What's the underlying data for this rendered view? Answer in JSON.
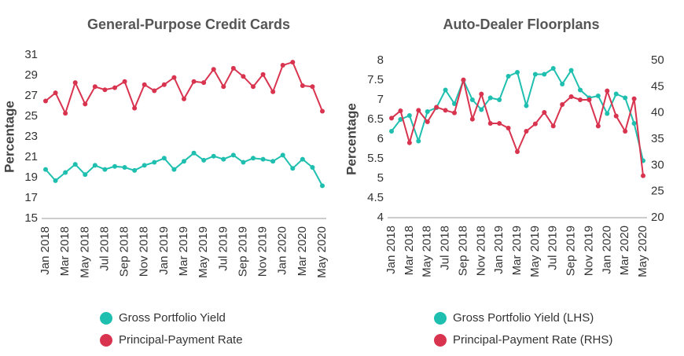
{
  "chart_data": [
    {
      "type": "line",
      "title": "General-Purpose Credit Cards",
      "ylabel": "Percentage",
      "categories": [
        "Jan 2018",
        null,
        "Mar 2018",
        null,
        "May 2018",
        null,
        "Jul 2018",
        null,
        "Sep 2018",
        null,
        "Nov 2018",
        null,
        "Jan 2019",
        null,
        "Mar 2019",
        null,
        "May 2019",
        null,
        "Jul 2019",
        null,
        "Sep 2019",
        null,
        "Nov 2019",
        null,
        "Jan 2020",
        null,
        "Mar 2020",
        null,
        "May 2020"
      ],
      "series": [
        {
          "name": "Gross Portfolio Yield",
          "color": "#1fbfb0",
          "values": [
            19.8,
            18.7,
            19.5,
            20.3,
            19.3,
            20.2,
            19.8,
            20.1,
            20.0,
            19.7,
            20.2,
            20.5,
            20.9,
            19.8,
            20.6,
            21.4,
            20.7,
            21.1,
            20.8,
            21.2,
            20.5,
            20.9,
            20.8,
            20.6,
            21.2,
            19.9,
            20.8,
            20.0,
            18.2
          ]
        },
        {
          "name": "Principal-Payment Rate",
          "color": "#d9344f",
          "values": [
            26.5,
            27.3,
            25.3,
            28.3,
            26.2,
            27.9,
            27.6,
            27.8,
            28.4,
            25.8,
            28.1,
            27.5,
            28.1,
            28.8,
            26.7,
            28.4,
            28.3,
            29.6,
            27.9,
            29.7,
            28.9,
            27.9,
            29.1,
            27.4,
            30.0,
            30.3,
            28.0,
            27.9,
            25.5
          ]
        }
      ],
      "ylim": [
        15,
        31
      ],
      "yticks": [
        15,
        17,
        19,
        21,
        23,
        25,
        27,
        29,
        31
      ],
      "grid": false
    },
    {
      "type": "line",
      "title": "Auto-Dealer Floorplans",
      "ylabel": "Percentage",
      "categories": [
        "Jan 2018",
        null,
        "Mar 2018",
        null,
        "May 2018",
        null,
        "Jul 2018",
        null,
        "Sep 2018",
        null,
        "Nov 2018",
        null,
        "Jan 2019",
        null,
        "Mar 2019",
        null,
        "May 2019",
        null,
        "Jul 2019",
        null,
        "Sep 2019",
        null,
        "Nov 2019",
        null,
        "Jan 2020",
        null,
        "Mar 2020",
        null,
        "May 2020"
      ],
      "series": [
        {
          "name": "Gross Portfolio Yield (LHS)",
          "color": "#1fbfb0",
          "values": [
            6.2,
            6.5,
            6.6,
            5.95,
            6.7,
            6.8,
            7.25,
            6.9,
            7.5,
            7.0,
            6.75,
            7.05,
            7.0,
            7.6,
            7.7,
            6.85,
            7.65,
            7.65,
            7.8,
            7.4,
            7.75,
            7.25,
            7.05,
            7.1,
            6.65,
            7.15,
            7.05,
            6.4,
            5.45
          ]
        },
        {
          "name": "Principal-Payment Rate (RHS)",
          "color": "#d9344f",
          "axis": "y2",
          "values": [
            39.0,
            40.4,
            34.3,
            40.5,
            38.3,
            41.1,
            40.5,
            40.0,
            46.3,
            38.8,
            43.6,
            38.0,
            38.0,
            37.1,
            32.6,
            36.5,
            37.9,
            40.1,
            37.5,
            41.6,
            43.1,
            42.5,
            42.5,
            37.5,
            44.2,
            39.4,
            36.5,
            42.7,
            28.0
          ]
        }
      ],
      "ylim": [
        4,
        8
      ],
      "yticks": [
        4,
        4.5,
        5,
        5.5,
        6,
        6.5,
        7,
        7.5,
        8
      ],
      "y2lim": [
        20,
        50
      ],
      "y2ticks": [
        20,
        25,
        30,
        35,
        40,
        45,
        50
      ],
      "grid": false
    }
  ]
}
